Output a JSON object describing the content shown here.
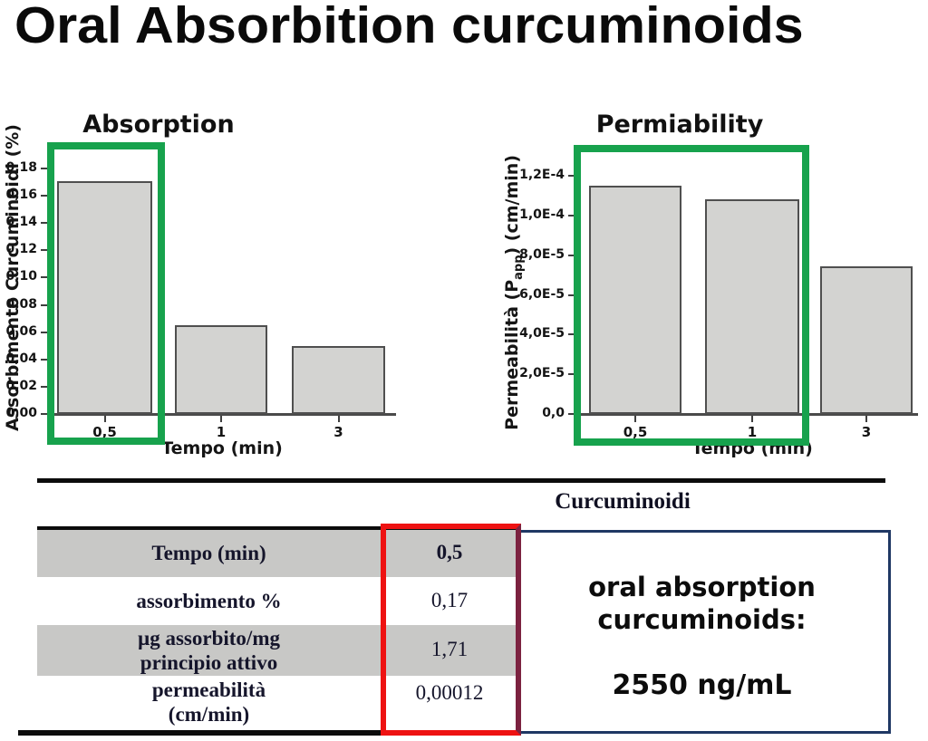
{
  "page": {
    "title": "Oral Absorbition curcuminoids"
  },
  "chart_data": [
    {
      "type": "bar",
      "title": "Absorption",
      "xlabel": "Tempo (min)",
      "ylabel": "Assorbimento Curcuminoidi (%)",
      "categories": [
        "0,5",
        "1",
        "3"
      ],
      "values": [
        0.171,
        0.065,
        0.05
      ],
      "ylim": [
        0,
        0.19
      ],
      "ytick_labels": [
        "0,00",
        "0,02",
        "0,04",
        "0,06",
        "0,08",
        "0,10",
        "0,12",
        "0,14",
        "0,16",
        "0,18"
      ],
      "ytick_values": [
        0,
        0.02,
        0.04,
        0.06,
        0.08,
        0.1,
        0.12,
        0.14,
        0.16,
        0.18
      ],
      "grid": false,
      "legend": false,
      "highlight": "green box around first bar (0,5)"
    },
    {
      "type": "bar",
      "title": "Permiability",
      "xlabel": "Tempo (min)",
      "ylabel": "Permeabilità (Papp) (cm/min)",
      "ylabel_prefix": "Permeabilità (P",
      "ylabel_sub": "app",
      "ylabel_suffix": ") (cm/min)",
      "categories": [
        "0,5",
        "1",
        "3"
      ],
      "values": [
        0.000115,
        0.000108,
        7.45e-05
      ],
      "ylim": [
        0,
        0.000135
      ],
      "ytick_labels": [
        "0,0",
        "2,0E-5",
        "4,0E-5",
        "6,0E-5",
        "8,0E-5",
        "1,0E-4",
        "1,2E-4"
      ],
      "ytick_values": [
        0,
        2e-05,
        4e-05,
        6e-05,
        8e-05,
        0.0001,
        0.00012
      ],
      "grid": false,
      "legend": false,
      "highlight": "green box around bars 0,5 and 1"
    }
  ],
  "table": {
    "header": "Curcuminoidi",
    "rows": [
      {
        "label": "Tempo (min)",
        "label2": "",
        "value": "0,5"
      },
      {
        "label": "assorbimento %",
        "label2": "",
        "value": "0,17"
      },
      {
        "label": "µg assorbito/mg",
        "label2": "principio attivo",
        "value": "1,71"
      },
      {
        "label": "permeabilità",
        "label2": "(cm/min)",
        "value": "0,00012"
      }
    ],
    "note_line1": "oral absorption",
    "note_line2": "curcuminoids:",
    "note_line3": "2550 ng/mL",
    "highlight": "red box around value column"
  },
  "colors": {
    "highlight_green": "#17a24d",
    "highlight_red": "#ee1212",
    "table_navy_border": "#1f3864",
    "row_gray": "#c8c8c6",
    "bar_fill": "#d3d3d1",
    "bar_border": "#4f4f4f",
    "axis": "#3f3f3f"
  }
}
